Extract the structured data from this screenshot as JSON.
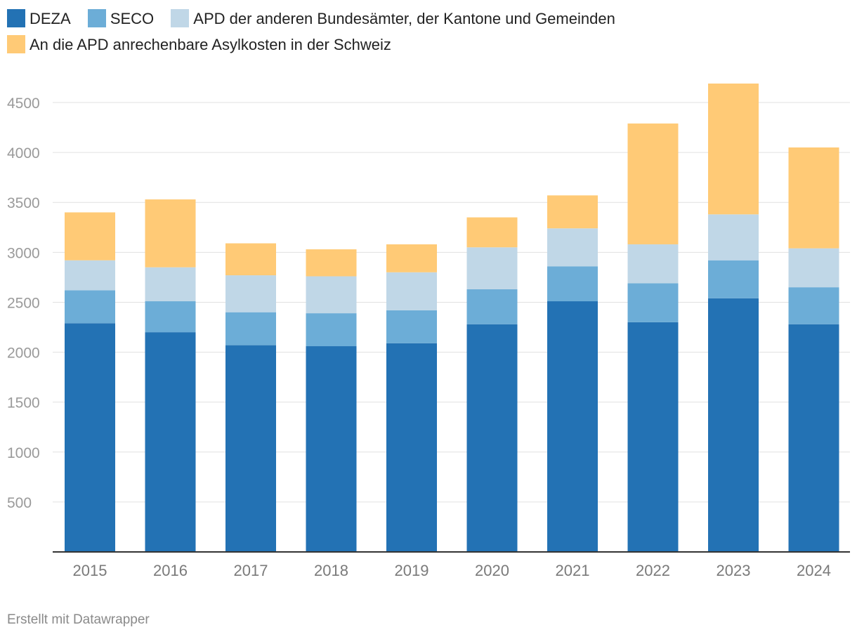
{
  "chart_data": {
    "type": "bar",
    "stacked": true,
    "categories": [
      "2015",
      "2016",
      "2017",
      "2018",
      "2019",
      "2020",
      "2021",
      "2022",
      "2023",
      "2024"
    ],
    "series": [
      {
        "name": "DEZA",
        "color": "#2372b4",
        "values": [
          2290,
          2200,
          2070,
          2060,
          2090,
          2280,
          2510,
          2300,
          2540,
          2280
        ]
      },
      {
        "name": "SECO",
        "color": "#6cadd7",
        "values": [
          330,
          310,
          330,
          330,
          330,
          350,
          350,
          390,
          380,
          370
        ]
      },
      {
        "name": "APD der anderen Bundesämter, der Kantone und Gemeinden",
        "color": "#c0d7e7",
        "values": [
          300,
          340,
          370,
          370,
          380,
          420,
          380,
          390,
          460,
          390
        ]
      },
      {
        "name": "An die APD anrechenbare Asylkosten in der Schweiz",
        "color": "#ffca76",
        "values": [
          480,
          680,
          320,
          270,
          280,
          300,
          330,
          1210,
          1310,
          1010
        ]
      }
    ],
    "yticks": [
      500,
      1000,
      1500,
      2000,
      2500,
      3000,
      3500,
      4000,
      4500
    ],
    "ylim": [
      0,
      4800
    ],
    "grid": true,
    "legend": "top-left"
  },
  "credit": "Erstellt mit Datawrapper"
}
